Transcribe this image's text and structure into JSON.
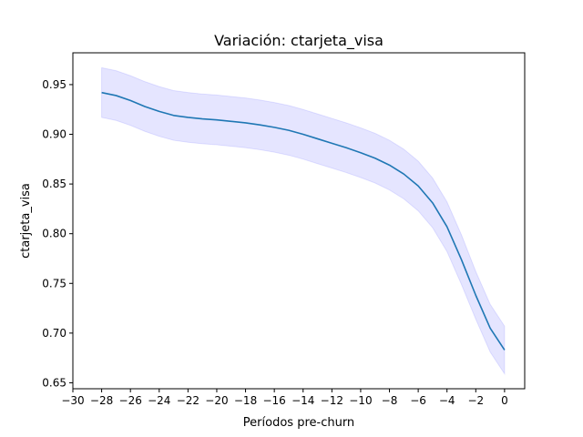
{
  "chart_data": {
    "type": "line",
    "title": "Variación: ctarjeta_visa",
    "xlabel": "Períodos pre-churn",
    "ylabel": "ctarjeta_visa",
    "xlim": [
      -30,
      1.4
    ],
    "ylim": [
      0.644,
      0.982
    ],
    "xticks": [
      -30,
      -28,
      -26,
      -24,
      -22,
      -20,
      -18,
      -16,
      -14,
      -12,
      -10,
      -8,
      -6,
      -4,
      -2,
      0
    ],
    "yticks": [
      0.65,
      0.7,
      0.75,
      0.8,
      0.85,
      0.9,
      0.95
    ],
    "xtick_labels": [
      "−30",
      "−28",
      "−26",
      "−24",
      "−22",
      "−20",
      "−18",
      "−16",
      "−14",
      "−12",
      "−10",
      "−8",
      "−6",
      "−4",
      "−2",
      "0"
    ],
    "ytick_labels": [
      "0.65",
      "0.70",
      "0.75",
      "0.80",
      "0.85",
      "0.90",
      "0.95"
    ],
    "grid": false,
    "series": [
      {
        "line_color": "#1f77b4",
        "band_color": "#0000ff",
        "x": [
          -28,
          -27,
          -26,
          -25,
          -24,
          -23,
          -22,
          -21,
          -20,
          -19,
          -18,
          -17,
          -16,
          -15,
          -14,
          -13,
          -12,
          -11,
          -10,
          -9,
          -8,
          -7,
          -6,
          -5,
          -4,
          -3,
          -2,
          -1,
          0
        ],
        "y": [
          0.942,
          0.939,
          0.934,
          0.928,
          0.923,
          0.919,
          0.917,
          0.9155,
          0.9145,
          0.913,
          0.9115,
          0.9095,
          0.907,
          0.904,
          0.9,
          0.8955,
          0.891,
          0.8865,
          0.8815,
          0.876,
          0.869,
          0.86,
          0.848,
          0.831,
          0.807,
          0.774,
          0.738,
          0.705,
          0.683
        ],
        "lower": [
          0.917,
          0.914,
          0.909,
          0.903,
          0.898,
          0.894,
          0.892,
          0.8905,
          0.8895,
          0.888,
          0.8865,
          0.8845,
          0.882,
          0.879,
          0.875,
          0.8705,
          0.866,
          0.8615,
          0.8565,
          0.851,
          0.844,
          0.835,
          0.823,
          0.806,
          0.782,
          0.749,
          0.714,
          0.681,
          0.659
        ],
        "upper": [
          0.967,
          0.964,
          0.959,
          0.953,
          0.948,
          0.944,
          0.942,
          0.9405,
          0.9395,
          0.938,
          0.9365,
          0.9345,
          0.932,
          0.929,
          0.925,
          0.9205,
          0.916,
          0.9115,
          0.9065,
          0.901,
          0.894,
          0.885,
          0.873,
          0.856,
          0.832,
          0.799,
          0.762,
          0.729,
          0.707
        ]
      }
    ]
  }
}
